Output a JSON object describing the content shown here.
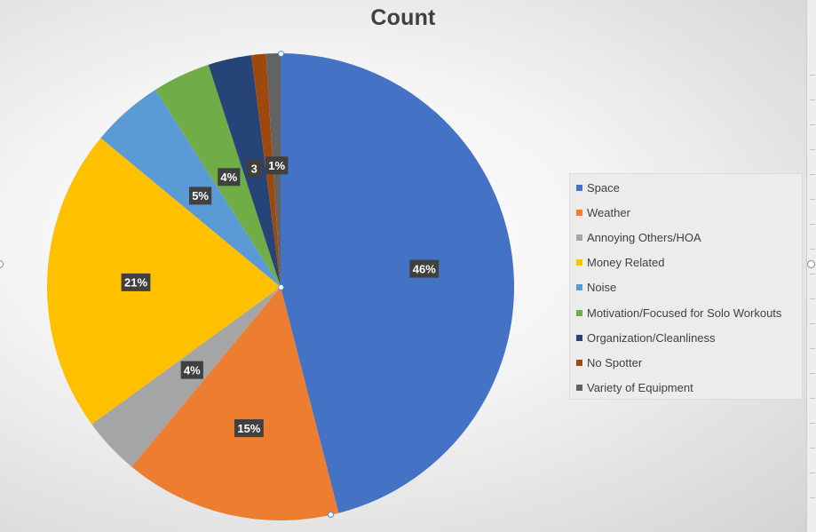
{
  "chart_data": {
    "type": "pie",
    "title": "Count",
    "categories": [
      "Space",
      "Weather",
      "Annoying Others/HOA",
      "Money Related",
      "Noise",
      "Motivation/Focused for Solo Workouts",
      "Organization/Cleanliness",
      "No Spotter",
      "Variety of Equipment"
    ],
    "values": [
      46,
      15,
      4,
      21,
      5,
      4,
      3,
      1,
      1
    ],
    "data_labels": [
      "46%",
      "15%",
      "4%",
      "21%",
      "5%",
      "4%",
      "3",
      "",
      "1%"
    ],
    "colors": [
      "#4472C4",
      "#ED7D31",
      "#A5A5A5",
      "#FFC000",
      "#5B9BD5",
      "#70AD47",
      "#264478",
      "#9E480E",
      "#636363"
    ],
    "legend_position": "right"
  }
}
